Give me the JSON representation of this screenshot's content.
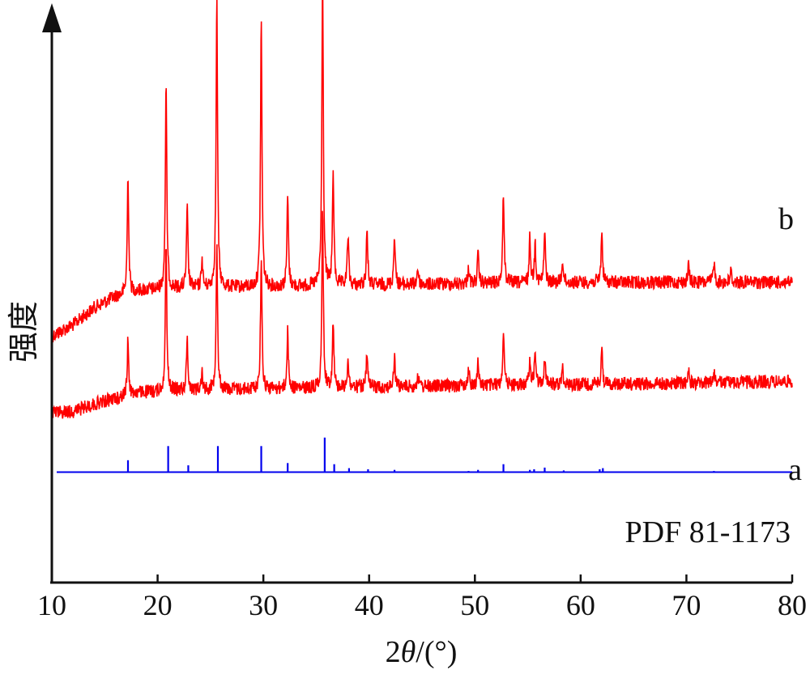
{
  "chart_data": {
    "type": "line",
    "xlabel_prefix": "2",
    "xlabel_var": "θ",
    "xlabel_suffix": "/(°)",
    "ylabel": "强度",
    "xlim": [
      10,
      80
    ],
    "x_ticks": [
      10,
      20,
      30,
      40,
      50,
      60,
      70,
      80
    ],
    "y_ticks_shown": false,
    "grid": false,
    "colors": {
      "pattern": "#ff0000",
      "reference": "#0000ee",
      "axis": "#111111"
    },
    "series": [
      {
        "name": "b",
        "baseline": [
          [
            10,
            0.565
          ],
          [
            12,
            0.545
          ],
          [
            14,
            0.515
          ],
          [
            16,
            0.495
          ],
          [
            18,
            0.485
          ],
          [
            22,
            0.48
          ],
          [
            30,
            0.478
          ],
          [
            40,
            0.475
          ],
          [
            50,
            0.472
          ],
          [
            60,
            0.47
          ],
          [
            70,
            0.47
          ],
          [
            80,
            0.47
          ]
        ],
        "peaks": [
          [
            17.2,
            0.21
          ],
          [
            20.8,
            0.36
          ],
          [
            22.8,
            0.14
          ],
          [
            24.2,
            0.05
          ],
          [
            25.6,
            0.51
          ],
          [
            29.8,
            0.47
          ],
          [
            32.3,
            0.16
          ],
          [
            35.6,
            0.55
          ],
          [
            36.6,
            0.2
          ],
          [
            38.0,
            0.09
          ],
          [
            39.8,
            0.1
          ],
          [
            42.4,
            0.09
          ],
          [
            44.6,
            0.03
          ],
          [
            49.4,
            0.03
          ],
          [
            50.3,
            0.05
          ],
          [
            52.7,
            0.16
          ],
          [
            55.2,
            0.08
          ],
          [
            55.7,
            0.07
          ],
          [
            56.6,
            0.09
          ],
          [
            58.3,
            0.04
          ],
          [
            62.0,
            0.09
          ],
          [
            70.2,
            0.03
          ],
          [
            72.6,
            0.04
          ],
          [
            74.2,
            0.02
          ]
        ]
      },
      {
        "name": "a",
        "baseline": [
          [
            10,
            0.7
          ],
          [
            12,
            0.698
          ],
          [
            14,
            0.685
          ],
          [
            16,
            0.675
          ],
          [
            18,
            0.665
          ],
          [
            22,
            0.66
          ],
          [
            30,
            0.658
          ],
          [
            40,
            0.655
          ],
          [
            50,
            0.652
          ],
          [
            60,
            0.65
          ],
          [
            70,
            0.648
          ],
          [
            80,
            0.645
          ]
        ],
        "peaks": [
          [
            17.2,
            0.1
          ],
          [
            20.8,
            0.26
          ],
          [
            22.8,
            0.09
          ],
          [
            24.2,
            0.03
          ],
          [
            25.6,
            0.26
          ],
          [
            29.8,
            0.23
          ],
          [
            32.3,
            0.1
          ],
          [
            35.6,
            0.31
          ],
          [
            36.6,
            0.12
          ],
          [
            38.0,
            0.05
          ],
          [
            39.8,
            0.06
          ],
          [
            42.4,
            0.05
          ],
          [
            44.6,
            0.02
          ],
          [
            49.4,
            0.03
          ],
          [
            50.3,
            0.04
          ],
          [
            52.7,
            0.1
          ],
          [
            55.2,
            0.05
          ],
          [
            55.7,
            0.06
          ],
          [
            56.6,
            0.05
          ],
          [
            58.3,
            0.03
          ],
          [
            62.0,
            0.06
          ],
          [
            70.2,
            0.02
          ],
          [
            72.6,
            0.02
          ]
        ]
      }
    ],
    "reference": {
      "name": "PDF 81-1173",
      "baseline": 0.805,
      "sticks": [
        [
          17.2,
          0.021
        ],
        [
          21.0,
          0.046
        ],
        [
          22.9,
          0.012
        ],
        [
          25.7,
          0.046
        ],
        [
          29.8,
          0.046
        ],
        [
          32.3,
          0.016
        ],
        [
          35.8,
          0.061
        ],
        [
          36.7,
          0.014
        ],
        [
          38.1,
          0.007
        ],
        [
          39.9,
          0.005
        ],
        [
          42.4,
          0.004
        ],
        [
          49.4,
          0.002
        ],
        [
          50.3,
          0.004
        ],
        [
          52.7,
          0.014
        ],
        [
          55.2,
          0.004
        ],
        [
          55.6,
          0.005
        ],
        [
          56.6,
          0.008
        ],
        [
          58.4,
          0.003
        ],
        [
          61.8,
          0.005
        ],
        [
          62.1,
          0.007
        ],
        [
          72.6,
          0.002
        ]
      ]
    }
  }
}
